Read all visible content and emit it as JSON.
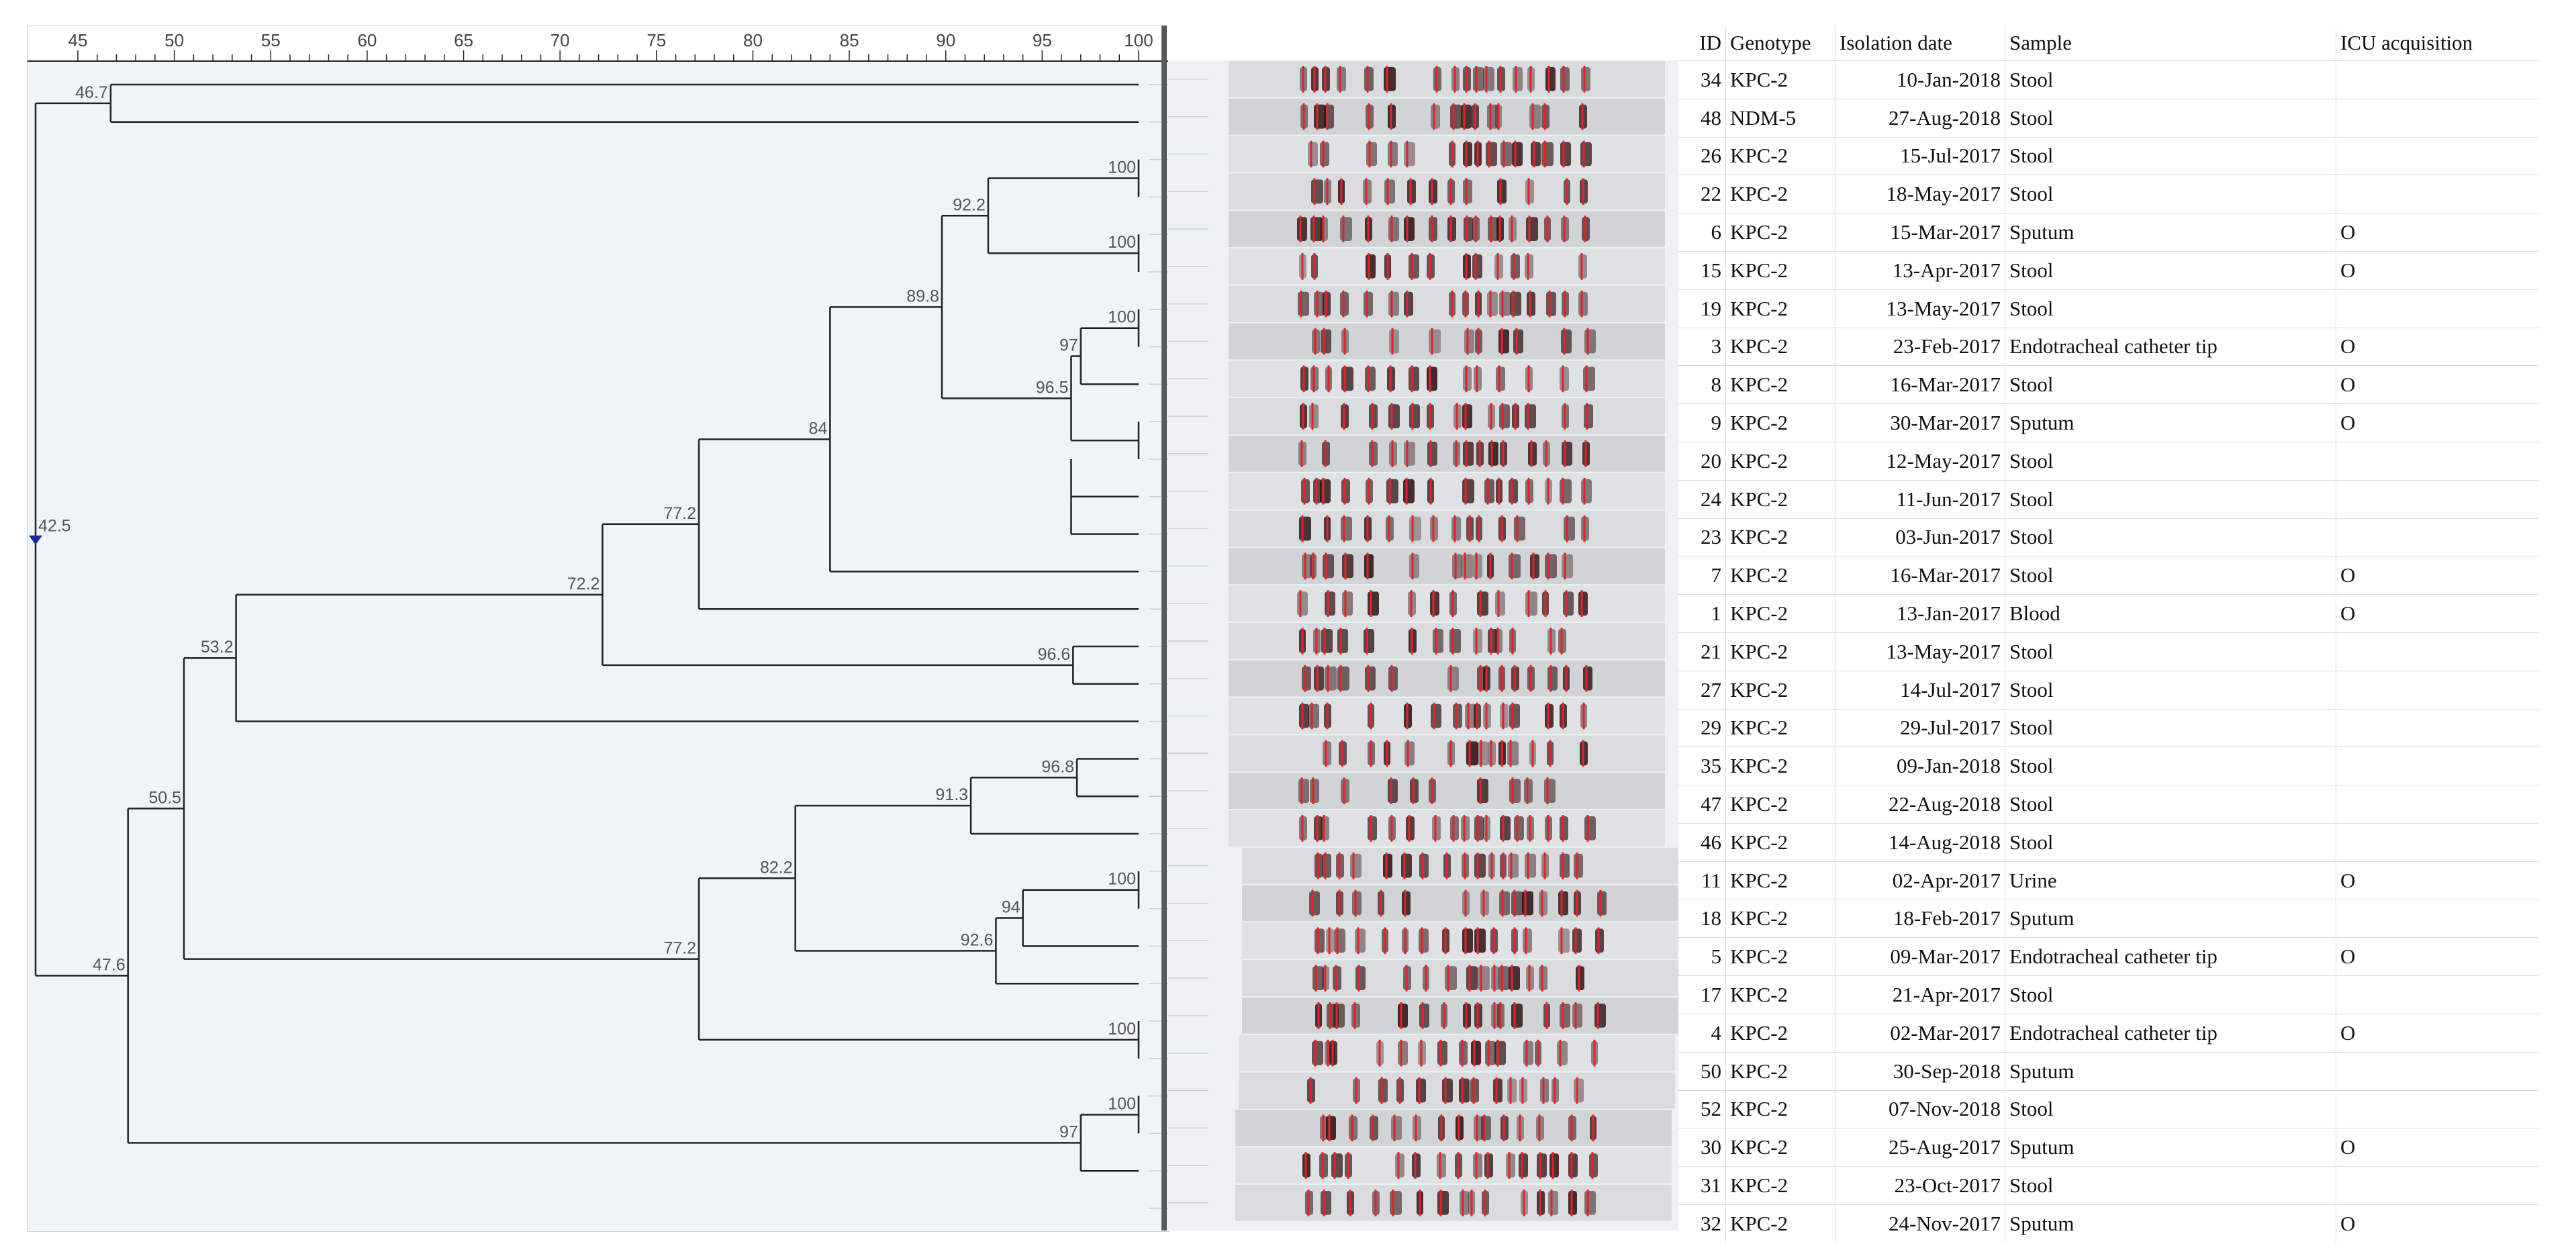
{
  "axis": {
    "min": 45,
    "max": 100,
    "ticks": [
      "45",
      "50",
      "55",
      "60",
      "65",
      "70",
      "75",
      "80",
      "85",
      "90",
      "95",
      "100"
    ]
  },
  "dendrogram": {
    "root_label": "42.5",
    "nodes": [
      {
        "label": "46.7"
      },
      {
        "label": "100"
      },
      {
        "label": "92.2"
      },
      {
        "label": "100"
      },
      {
        "label": "89.8"
      },
      {
        "label": "100"
      },
      {
        "label": "97"
      },
      {
        "label": "96.5"
      },
      {
        "label": "84"
      },
      {
        "label": "77.2"
      },
      {
        "label": "72.2"
      },
      {
        "label": "96.6"
      },
      {
        "label": "53.2"
      },
      {
        "label": "96.8"
      },
      {
        "label": "91.3"
      },
      {
        "label": "82.2"
      },
      {
        "label": "100"
      },
      {
        "label": "94"
      },
      {
        "label": "92.6"
      },
      {
        "label": "77.2"
      },
      {
        "label": "100"
      },
      {
        "label": "50.5"
      },
      {
        "label": "100"
      },
      {
        "label": "97"
      },
      {
        "label": "47.6"
      }
    ]
  },
  "table": {
    "headers": {
      "id": "ID",
      "genotype": "Genotype",
      "date": "Isolation date",
      "sample": "Sample",
      "icu": "ICU acquisition"
    },
    "rows": [
      {
        "id": "34",
        "genotype": "KPC-2",
        "date": "10-Jan-2018",
        "sample": "Stool",
        "icu": ""
      },
      {
        "id": "48",
        "genotype": "NDM-5",
        "date": "27-Aug-2018",
        "sample": "Stool",
        "icu": ""
      },
      {
        "id": "26",
        "genotype": "KPC-2",
        "date": "15-Jul-2017",
        "sample": "Stool",
        "icu": ""
      },
      {
        "id": "22",
        "genotype": "KPC-2",
        "date": "18-May-2017",
        "sample": "Stool",
        "icu": ""
      },
      {
        "id": "6",
        "genotype": "KPC-2",
        "date": "15-Mar-2017",
        "sample": "Sputum",
        "icu": "O"
      },
      {
        "id": "15",
        "genotype": "KPC-2",
        "date": "13-Apr-2017",
        "sample": "Stool",
        "icu": "O"
      },
      {
        "id": "19",
        "genotype": "KPC-2",
        "date": "13-May-2017",
        "sample": "Stool",
        "icu": ""
      },
      {
        "id": "3",
        "genotype": "KPC-2",
        "date": "23-Feb-2017",
        "sample": "Endotracheal catheter tip",
        "icu": "O"
      },
      {
        "id": "8",
        "genotype": "KPC-2",
        "date": "16-Mar-2017",
        "sample": "Stool",
        "icu": "O"
      },
      {
        "id": "9",
        "genotype": "KPC-2",
        "date": "30-Mar-2017",
        "sample": "Sputum",
        "icu": "O"
      },
      {
        "id": "20",
        "genotype": "KPC-2",
        "date": "12-May-2017",
        "sample": "Stool",
        "icu": ""
      },
      {
        "id": "24",
        "genotype": "KPC-2",
        "date": "11-Jun-2017",
        "sample": "Stool",
        "icu": ""
      },
      {
        "id": "23",
        "genotype": "KPC-2",
        "date": "03-Jun-2017",
        "sample": "Stool",
        "icu": ""
      },
      {
        "id": "7",
        "genotype": "KPC-2",
        "date": "16-Mar-2017",
        "sample": "Stool",
        "icu": "O"
      },
      {
        "id": "1",
        "genotype": "KPC-2",
        "date": "13-Jan-2017",
        "sample": "Blood",
        "icu": "O"
      },
      {
        "id": "21",
        "genotype": "KPC-2",
        "date": "13-May-2017",
        "sample": "Stool",
        "icu": ""
      },
      {
        "id": "27",
        "genotype": "KPC-2",
        "date": "14-Jul-2017",
        "sample": "Stool",
        "icu": ""
      },
      {
        "id": "29",
        "genotype": "KPC-2",
        "date": "29-Jul-2017",
        "sample": "Stool",
        "icu": ""
      },
      {
        "id": "35",
        "genotype": "KPC-2",
        "date": "09-Jan-2018",
        "sample": "Stool",
        "icu": ""
      },
      {
        "id": "47",
        "genotype": "KPC-2",
        "date": "22-Aug-2018",
        "sample": "Stool",
        "icu": ""
      },
      {
        "id": "46",
        "genotype": "KPC-2",
        "date": "14-Aug-2018",
        "sample": "Stool",
        "icu": ""
      },
      {
        "id": "11",
        "genotype": "KPC-2",
        "date": "02-Apr-2017",
        "sample": "Urine",
        "icu": "O"
      },
      {
        "id": "18",
        "genotype": "KPC-2",
        "date": "18-Feb-2017",
        "sample": "Sputum",
        "icu": ""
      },
      {
        "id": "5",
        "genotype": "KPC-2",
        "date": "09-Mar-2017",
        "sample": "Endotracheal catheter tip",
        "icu": "O"
      },
      {
        "id": "17",
        "genotype": "KPC-2",
        "date": "21-Apr-2017",
        "sample": "Stool",
        "icu": ""
      },
      {
        "id": "4",
        "genotype": "KPC-2",
        "date": "02-Mar-2017",
        "sample": "Endotracheal catheter tip",
        "icu": "O"
      },
      {
        "id": "50",
        "genotype": "KPC-2",
        "date": "30-Sep-2018",
        "sample": "Sputum",
        "icu": ""
      },
      {
        "id": "52",
        "genotype": "KPC-2",
        "date": "07-Nov-2018",
        "sample": "Stool",
        "icu": ""
      },
      {
        "id": "30",
        "genotype": "KPC-2",
        "date": "25-Aug-2017",
        "sample": "Sputum",
        "icu": "O"
      },
      {
        "id": "31",
        "genotype": "KPC-2",
        "date": "23-Oct-2017",
        "sample": "Stool",
        "icu": ""
      },
      {
        "id": "32",
        "genotype": "KPC-2",
        "date": "24-Nov-2017",
        "sample": "Sputum",
        "icu": "O"
      }
    ]
  },
  "colors": {
    "band_marker": "#e0242a",
    "line": "#222222",
    "root_marker": "#1a2a9a"
  }
}
